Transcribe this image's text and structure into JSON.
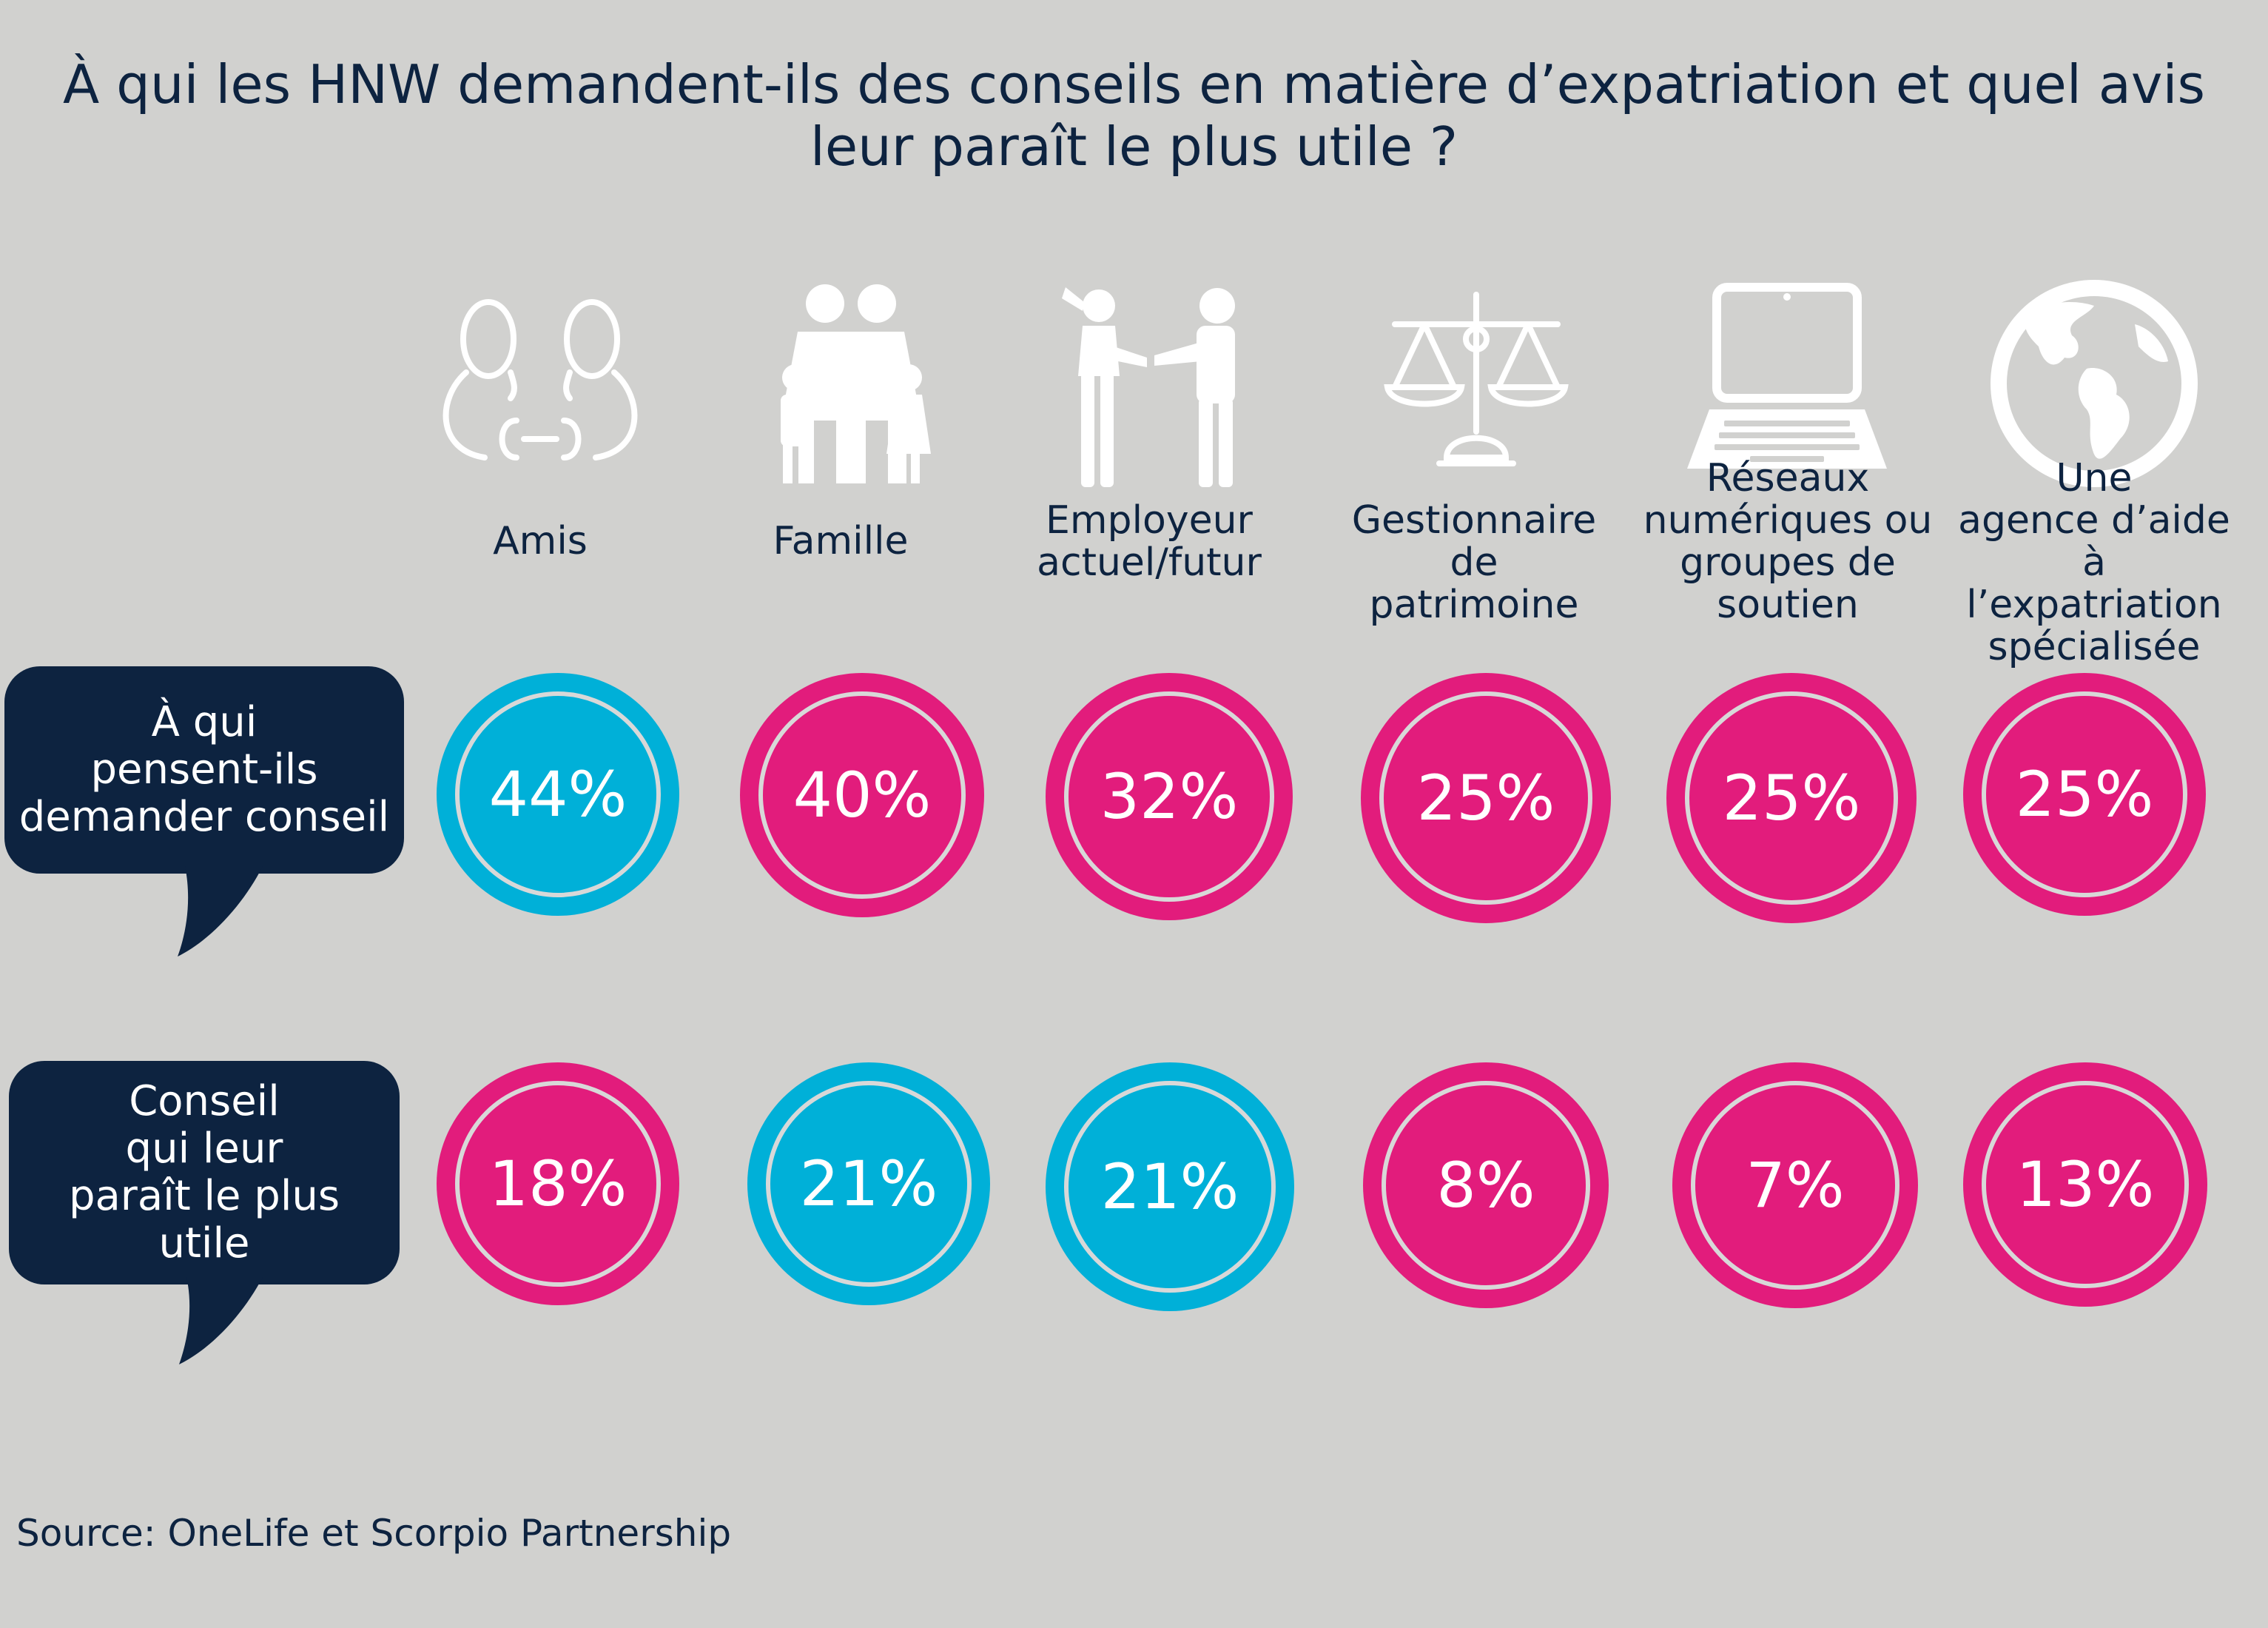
{
  "title_lines": [
    "À qui les HNW demandent-ils des conseils en matière d’expatriation et quel avis",
    "leur paraît le plus utile ?"
  ],
  "colors": {
    "background": "#d1d1cf",
    "navy": "#0d2340",
    "highlight": "#00b0d8",
    "pink": "#e21c7c"
  },
  "columns": [
    {
      "icon": "friends-icon",
      "label_lines": [
        "Amis"
      ]
    },
    {
      "icon": "family-icon",
      "label_lines": [
        "Famille"
      ]
    },
    {
      "icon": "handshake-icon",
      "label_lines": [
        "Employeur",
        "actuel/futur"
      ]
    },
    {
      "icon": "scales-icon",
      "label_lines": [
        "Gestionnaire",
        "de",
        "patrimoine"
      ]
    },
    {
      "icon": "laptop-icon",
      "label_lines": [
        "Réseaux",
        "numériques ou",
        "groupes de",
        "soutien"
      ]
    },
    {
      "icon": "globe-icon",
      "label_lines": [
        "Une",
        "agence d’aide à",
        "l’expatriation",
        "spécialisée"
      ]
    }
  ],
  "rows": [
    {
      "label_lines": [
        "À qui",
        "pensent-ils",
        "demander conseil"
      ],
      "cells": [
        {
          "text": "44%",
          "color": "#00b0d8"
        },
        {
          "text": "40%",
          "color": "#e21c7c"
        },
        {
          "text": "32%",
          "color": "#e21c7c"
        },
        {
          "text": "25%",
          "color": "#e21c7c"
        },
        {
          "text": "25%",
          "color": "#e21c7c"
        },
        {
          "text": "25%",
          "color": "#e21c7c"
        }
      ]
    },
    {
      "label_lines": [
        "Conseil",
        "qui leur",
        "paraît le plus",
        "utile"
      ],
      "cells": [
        {
          "text": "18%",
          "color": "#e21c7c"
        },
        {
          "text": "21%",
          "color": "#00b0d8"
        },
        {
          "text": "21%",
          "color": "#00b0d8"
        },
        {
          "text": "8%",
          "color": "#e21c7c"
        },
        {
          "text": "7%",
          "color": "#e21c7c"
        },
        {
          "text": "13%",
          "color": "#e21c7c"
        }
      ]
    }
  ],
  "chart_data": {
    "type": "table",
    "title": "À qui les HNW demandent-ils des conseils en matière d’expatriation et quel avis leur paraît le plus utile ?",
    "categories": [
      "Amis",
      "Famille",
      "Employeur actuel/futur",
      "Gestionnaire de patrimoine",
      "Réseaux numériques ou groupes de soutien",
      "Une agence d’aide à l’expatriation spécialisée"
    ],
    "series": [
      {
        "name": "À qui pensent-ils demander conseil",
        "values": [
          44,
          40,
          32,
          25,
          25,
          25
        ]
      },
      {
        "name": "Conseil qui leur paraît le plus utile",
        "values": [
          18,
          21,
          21,
          8,
          7,
          13
        ]
      }
    ],
    "unit": "%"
  },
  "source": "Source: OneLife et Scorpio Partnership"
}
